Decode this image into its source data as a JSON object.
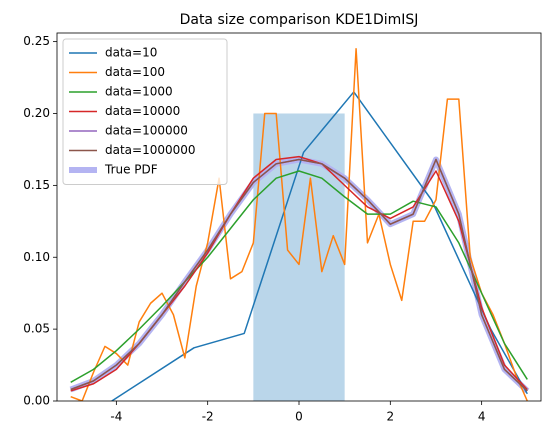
{
  "chart_data": {
    "type": "line",
    "title": "Data size comparison KDE1DimISJ",
    "x": [
      -5,
      -4.5,
      -4,
      -3.5,
      -3,
      -2.5,
      -2,
      -1.5,
      -1,
      -0.5,
      0,
      0.5,
      1,
      1.5,
      2,
      2.5,
      3,
      3.5,
      4,
      4.5,
      5
    ],
    "series": [
      {
        "name": "data=10",
        "color": "#1f77b4",
        "x": [
          -4.1,
          -2.3,
          -1.2,
          0.1,
          1.2,
          2.9,
          4.2,
          5
        ],
        "values": [
          0,
          0.037,
          0.047,
          0.173,
          0.215,
          0.14,
          0.05,
          0.005
        ]
      },
      {
        "name": "data=100",
        "color": "#ff7f0e",
        "x": [
          -5,
          -4.75,
          -4.5,
          -4.25,
          -4,
          -3.75,
          -3.5,
          -3.25,
          -3,
          -2.75,
          -2.5,
          -2.25,
          -2,
          -1.75,
          -1.5,
          -1.25,
          -1,
          -0.75,
          -0.5,
          -0.25,
          0,
          0.25,
          0.5,
          0.75,
          1,
          1.25,
          1.5,
          1.75,
          2,
          2.25,
          2.5,
          2.75,
          3,
          3.25,
          3.5,
          3.75,
          4,
          4.25,
          4.5,
          4.75,
          5
        ],
        "values": [
          0.003,
          0,
          0.02,
          0.038,
          0.033,
          0.025,
          0.055,
          0.068,
          0.075,
          0.06,
          0.03,
          0.08,
          0.11,
          0.155,
          0.085,
          0.09,
          0.11,
          0.2,
          0.2,
          0.105,
          0.095,
          0.155,
          0.09,
          0.115,
          0.095,
          0.245,
          0.11,
          0.13,
          0.095,
          0.07,
          0.125,
          0.125,
          0.14,
          0.21,
          0.21,
          0.1,
          0.075,
          0.06,
          0.04,
          0.018,
          0
        ]
      },
      {
        "name": "data=1000",
        "color": "#2ca02c",
        "values": [
          0.013,
          0.022,
          0.035,
          0.05,
          0.066,
          0.083,
          0.1,
          0.12,
          0.14,
          0.155,
          0.16,
          0.155,
          0.142,
          0.13,
          0.13,
          0.139,
          0.135,
          0.11,
          0.075,
          0.04,
          0.015
        ]
      },
      {
        "name": "data=10000",
        "color": "#d62728",
        "values": [
          0.007,
          0.012,
          0.022,
          0.04,
          0.06,
          0.08,
          0.103,
          0.13,
          0.155,
          0.168,
          0.17,
          0.165,
          0.15,
          0.135,
          0.127,
          0.135,
          0.16,
          0.125,
          0.065,
          0.025,
          0.008
        ]
      },
      {
        "name": "data=100000",
        "color": "#9467bd",
        "values": [
          0.008,
          0.014,
          0.025,
          0.04,
          0.06,
          0.083,
          0.105,
          0.13,
          0.152,
          0.165,
          0.168,
          0.165,
          0.155,
          0.14,
          0.123,
          0.13,
          0.168,
          0.13,
          0.06,
          0.022,
          0.007
        ]
      },
      {
        "name": "data=1000000",
        "color": "#8c564b",
        "values": [
          0.008,
          0.014,
          0.025,
          0.04,
          0.06,
          0.083,
          0.105,
          0.13,
          0.152,
          0.165,
          0.168,
          0.165,
          0.155,
          0.14,
          0.123,
          0.13,
          0.168,
          0.13,
          0.06,
          0.022,
          0.007
        ]
      },
      {
        "name": "True PDF",
        "color": "#b4b4f2",
        "linewidth": 6,
        "values": [
          0.008,
          0.014,
          0.025,
          0.04,
          0.06,
          0.083,
          0.105,
          0.13,
          0.152,
          0.165,
          0.168,
          0.165,
          0.155,
          0.14,
          0.123,
          0.13,
          0.168,
          0.13,
          0.06,
          0.022,
          0.007
        ]
      }
    ],
    "shaded_region": {
      "x": [
        -1,
        1
      ],
      "value": 0.2,
      "color": "#bad6ea"
    },
    "xlim": [
      -5.3,
      5.3
    ],
    "ylim": [
      0,
      0.256
    ],
    "xticks": [
      -4,
      -2,
      0,
      2,
      4
    ],
    "yticks": [
      {
        "value": 0,
        "label": "0.00"
      },
      {
        "value": 0.05,
        "label": "0.05"
      },
      {
        "value": 0.1,
        "label": "0.10"
      },
      {
        "value": 0.15,
        "label": "0.15"
      },
      {
        "value": 0.2,
        "label": "0.20"
      },
      {
        "value": 0.25,
        "label": "0.25"
      }
    ],
    "legend": "upper left"
  }
}
